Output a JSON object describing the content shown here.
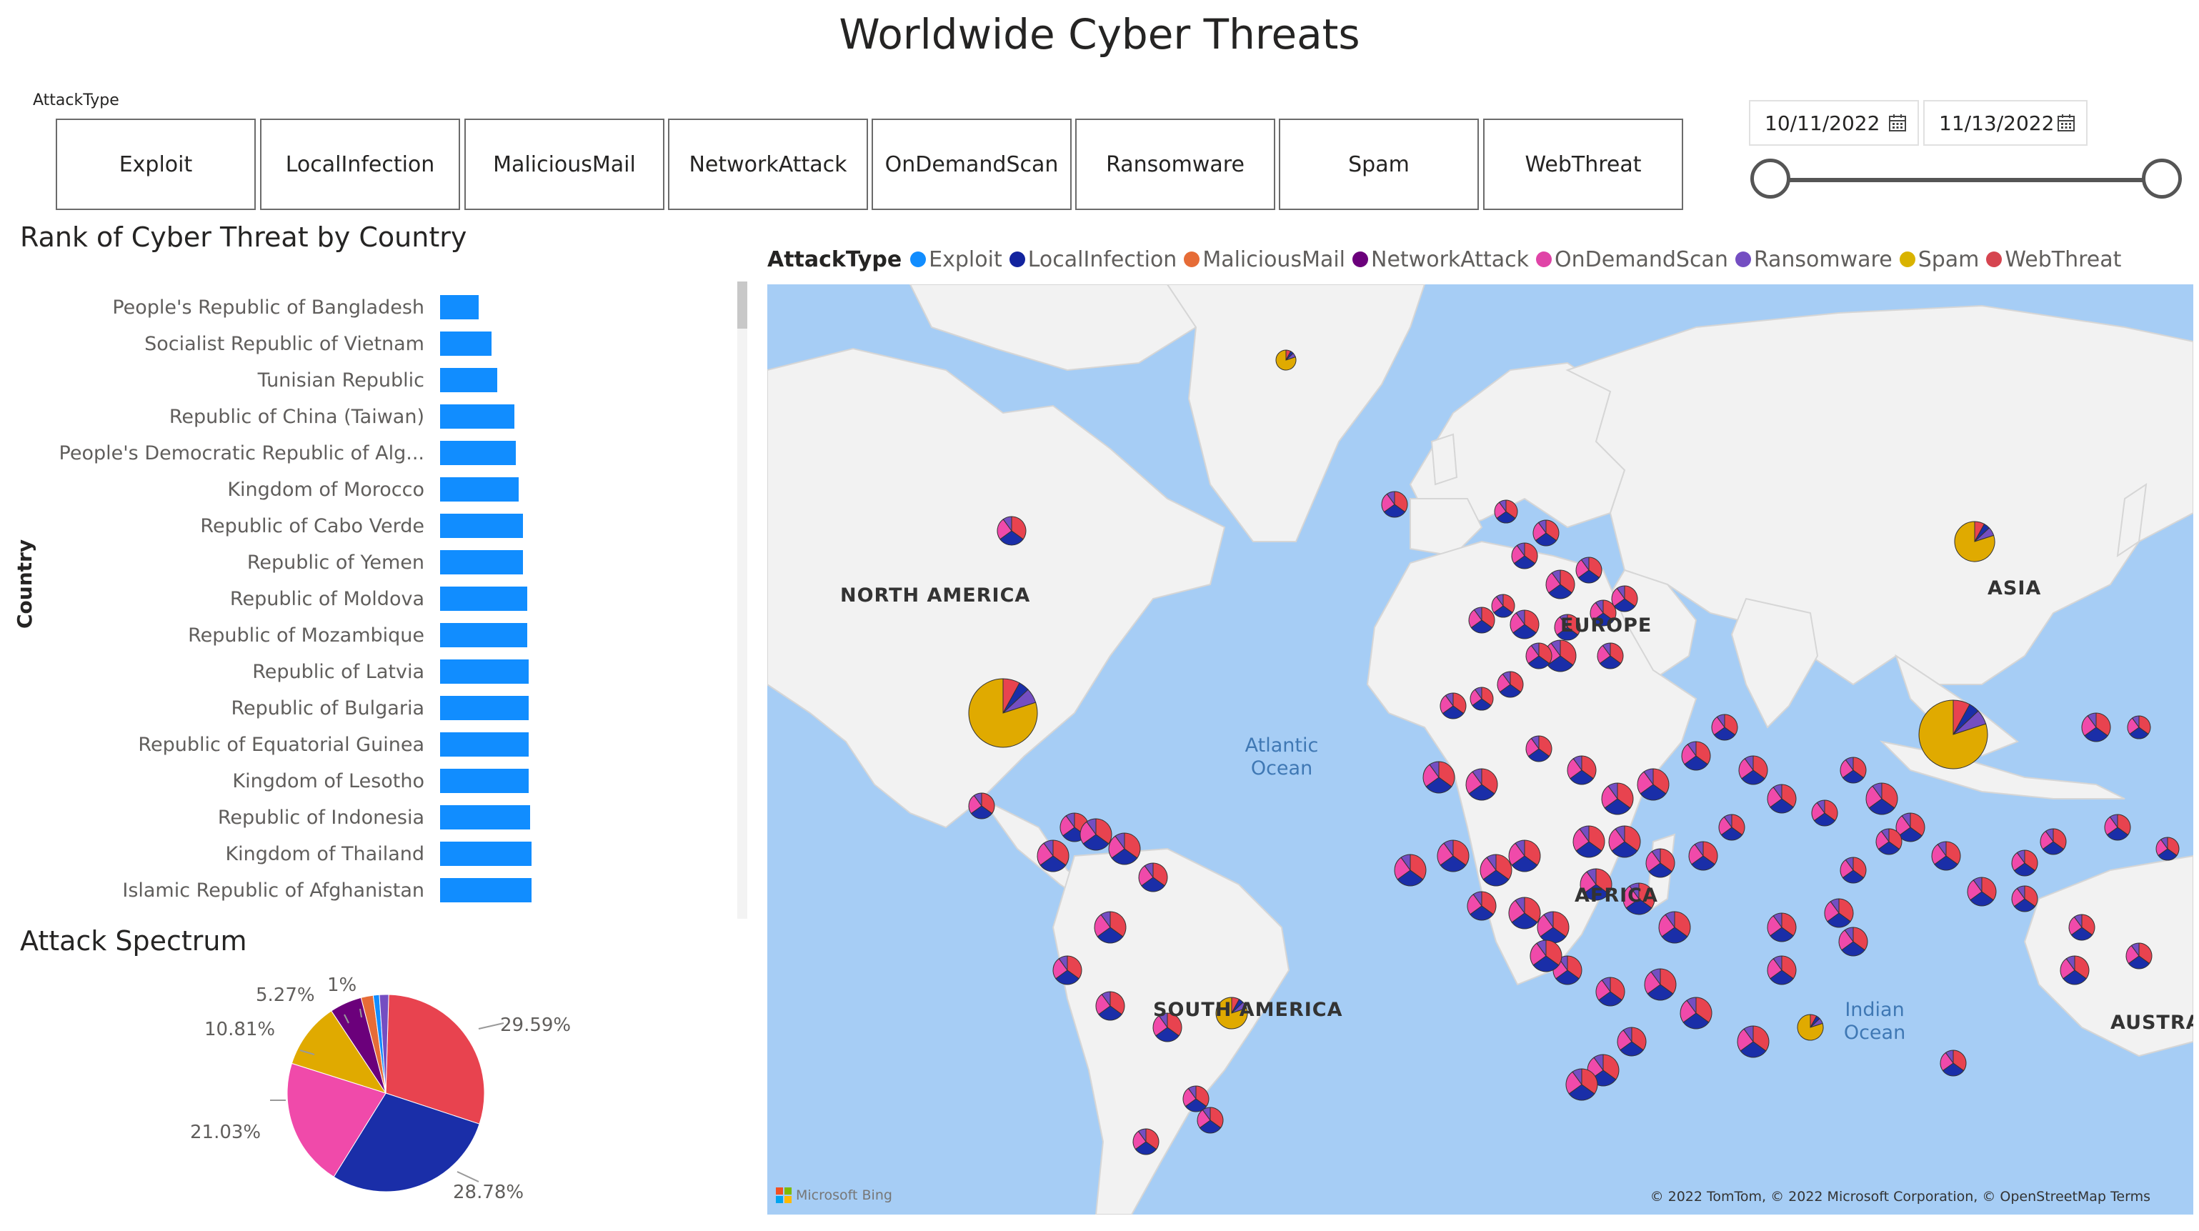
{
  "title": "Worldwide Cyber Threats",
  "slicer": {
    "label": "AttackType",
    "buttons": [
      "Exploit",
      "LocalInfection",
      "MaliciousMail",
      "NetworkAttack",
      "OnDemandScan",
      "Ransomware",
      "Spam",
      "WebThreat"
    ]
  },
  "date_range": {
    "start": "10/11/2022",
    "end": "11/13/2022"
  },
  "rank_chart": {
    "title": "Rank of Cyber Threat by Country",
    "axis_label": "Country"
  },
  "pie_chart": {
    "title": "Attack Spectrum",
    "labels": [
      "29.59%",
      "28.78%",
      "21.03%",
      "10.81%",
      "5.27%",
      "1%"
    ]
  },
  "map": {
    "legend_title": "AttackType",
    "legend": [
      {
        "name": "Exploit",
        "color": "#118dff"
      },
      {
        "name": "LocalInfection",
        "color": "#12239e"
      },
      {
        "name": "MaliciousMail",
        "color": "#e66c37"
      },
      {
        "name": "NetworkAttack",
        "color": "#6b007b"
      },
      {
        "name": "OnDemandScan",
        "color": "#e044a7"
      },
      {
        "name": "Ransomware",
        "color": "#744ec2"
      },
      {
        "name": "Spam",
        "color": "#d9b300"
      },
      {
        "name": "WebThreat",
        "color": "#d64550"
      }
    ],
    "labels": {
      "north_america": "NORTH AMERICA",
      "south_america": "SOUTH AMERICA",
      "europe": "EUROPE",
      "africa": "AFRICA",
      "asia": "ASIA",
      "australia": "AUSTRAI",
      "atlantic": "Atlantic Ocean",
      "indian": "Indian Ocean"
    },
    "attribution": "© 2022 TomTom, © 2022 Microsoft Corporation, © OpenStreetMap  Terms",
    "bing": "Microsoft Bing"
  },
  "chart_data": [
    {
      "type": "bar",
      "orientation": "horizontal",
      "title": "Rank of Cyber Threat by Country",
      "ylabel": "Country",
      "categories": [
        "People's Republic of Bangladesh",
        "Socialist Republic of Vietnam",
        "Tunisian Republic",
        "Republic of China (Taiwan)",
        "People's Democratic Republic of Alg...",
        "Kingdom of Morocco",
        "Republic of Cabo Verde",
        "Republic of Yemen",
        "Republic of Moldova",
        "Republic of Mozambique",
        "Republic of Latvia",
        "Republic of Bulgaria",
        "Republic of Equatorial Guinea",
        "Kingdom of Lesotho",
        "Republic of Indonesia",
        "Kingdom of Thailand",
        "Islamic Republic of Afghanistan"
      ],
      "values": [
        27,
        36,
        40,
        52,
        53,
        55,
        58,
        58,
        61,
        61,
        62,
        62,
        62,
        62,
        63,
        64,
        64
      ]
    },
    {
      "type": "pie",
      "title": "Attack Spectrum",
      "slices": [
        {
          "label": "WebThreat",
          "value": 29.59,
          "color": "#e8434f"
        },
        {
          "label": "LocalInfection",
          "value": 28.78,
          "color": "#1a2ea8"
        },
        {
          "label": "OnDemandScan",
          "value": 21.03,
          "color": "#f04aaa"
        },
        {
          "label": "Spam",
          "value": 10.81,
          "color": "#e0aa00"
        },
        {
          "label": "NetworkAttack",
          "value": 5.27,
          "color": "#6b007b"
        },
        {
          "label": "MaliciousMail",
          "value": 2.0,
          "color": "#e66c37"
        },
        {
          "label": "Exploit",
          "value": 1.0,
          "color": "#118dff"
        },
        {
          "label": "Ransomware",
          "value": 1.52,
          "color": "#744ec2"
        }
      ]
    }
  ]
}
